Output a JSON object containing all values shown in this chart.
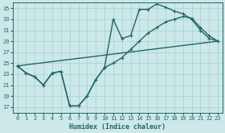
{
  "xlabel": "Humidex (Indice chaleur)",
  "xlim": [
    -0.5,
    23.5
  ],
  "ylim": [
    16,
    36
  ],
  "xticks": [
    0,
    1,
    2,
    3,
    4,
    5,
    6,
    7,
    8,
    9,
    10,
    11,
    12,
    13,
    14,
    15,
    16,
    17,
    18,
    19,
    20,
    21,
    22,
    23
  ],
  "yticks": [
    17,
    19,
    21,
    23,
    25,
    27,
    29,
    31,
    33,
    35
  ],
  "bg_color": "#cce8e8",
  "line_color": "#226666",
  "grid_color": "#aad4d4",
  "line1_x": [
    0,
    1,
    2,
    3,
    4,
    5,
    6,
    7,
    8,
    9,
    10,
    11,
    12,
    13,
    14,
    15,
    16,
    17,
    18,
    19,
    20,
    21,
    22,
    23
  ],
  "line1_y": [
    24.5,
    23.2,
    22.5,
    21.0,
    23.2,
    23.5,
    17.2,
    17.2,
    19.0,
    22.0,
    24.2,
    25.0,
    26.0,
    27.5,
    29.0,
    30.5,
    31.5,
    32.5,
    33.0,
    33.5,
    33.2,
    31.5,
    30.0,
    29.0
  ],
  "line2_x": [
    0,
    1,
    2,
    3,
    4,
    5,
    6,
    7,
    8,
    9,
    10,
    11,
    12,
    13,
    14,
    15,
    16,
    17,
    18,
    19,
    20,
    21,
    22,
    23
  ],
  "line2_y": [
    24.5,
    23.2,
    22.5,
    21.0,
    23.2,
    23.5,
    17.2,
    17.2,
    19.0,
    22.0,
    24.2,
    33.0,
    29.5,
    30.0,
    34.8,
    34.8,
    35.8,
    35.2,
    34.5,
    34.0,
    33.0,
    31.0,
    29.5,
    29.0
  ],
  "line3_x": [
    0,
    23
  ],
  "line3_y": [
    24.5,
    29.0
  ],
  "markersize": 2.5,
  "linewidth": 1.0
}
